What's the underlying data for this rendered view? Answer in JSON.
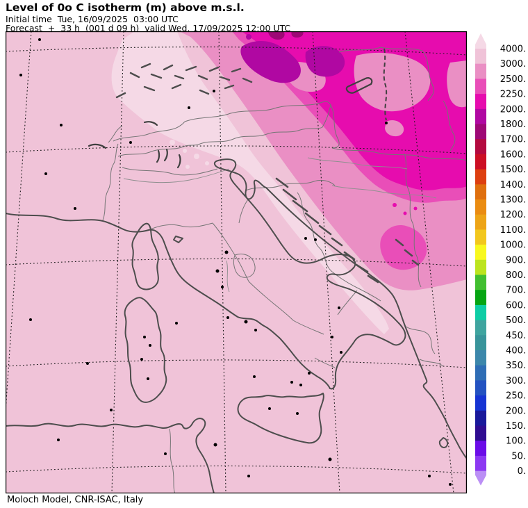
{
  "header": {
    "title": "Level of 0o C isotherm (m) above m.s.l.",
    "initial_time_line": "Initial time  Tue, 16/09/2025  03:00 UTC",
    "forecast_line": "Forecast  +  33 h  (001 d 09 h)  valid Wed, 17/09/2025 12:00 UTC"
  },
  "footer": {
    "credit": "Moloch Model, CNR-ISAC, Italy"
  },
  "chart_data": {
    "type": "heatmap",
    "title": "Level of 0o C isotherm (m) above m.s.l.",
    "variable": "Height of the 0 C isotherm",
    "units": "m",
    "model": "Moloch",
    "institution": "CNR-ISAC, Italy",
    "initial_time": "Tue, 16/09/2025 03:00 UTC",
    "forecast_lead": "+ 33 h (001 d 09 h)",
    "valid_time": "Wed, 17/09/2025 12:00 UTC",
    "region": "Italy, Alps, Adriatic and central Mediterranean",
    "grid": "lat/lon graticule drawn as dotted lines",
    "legend_position": "right",
    "colorbar": {
      "orientation": "vertical",
      "levels": [
        4000,
        3000,
        2500,
        2250,
        2000,
        1800,
        1700,
        1600,
        1500,
        1400,
        1300,
        1200,
        1100,
        1000,
        900,
        800,
        700,
        600,
        500,
        450,
        400,
        350,
        300,
        250,
        200,
        150,
        100,
        50,
        0
      ],
      "labels": [
        "4000.",
        "3000.",
        "2500.",
        "2250.",
        "2000.",
        "1800.",
        "1700.",
        "1600.",
        "1500.",
        "1400.",
        "1300.",
        "1200.",
        "1100.",
        "1000.",
        "900.",
        "800.",
        "700.",
        "600.",
        "500.",
        "450.",
        "400.",
        "350.",
        "300.",
        "250.",
        "200.",
        "150.",
        "100.",
        "50.",
        "0."
      ],
      "colors": [
        "#f5d9e6",
        "#f0c3d8",
        "#ea8fc4",
        "#e94eb8",
        "#e60cae",
        "#b008a2",
        "#9e0876",
        "#b30a3f",
        "#cc0f24",
        "#dd3f10",
        "#df6f0e",
        "#ea8c12",
        "#eda417",
        "#f2c71d",
        "#f8f81e",
        "#bce41e",
        "#41bf30",
        "#06a513",
        "#0ecda5",
        "#3fa49f",
        "#38949a",
        "#3c87ab",
        "#2e6db5",
        "#2352c1",
        "#1634d3",
        "#19199b",
        "#2f0c91",
        "#6b0ce8",
        "#8c38f2",
        "#bb8ff5"
      ]
    },
    "filled_regions": [
      {
        "value_range_m": "> 4000",
        "color": "#f5d9e6",
        "where": "curved light band from the Alps south-east along the Adriatic Sea toward Montenegro"
      },
      {
        "value_range_m": "3000-4000",
        "color": "#f0c3d8",
        "where": "most of Italy, the western Mediterranean and north Africa"
      },
      {
        "value_range_m": "2500-3000",
        "color": "#ea8fc4",
        "where": "north-east: eastern Alps, Pannonian basin, central Balkans; lighter patches over Hungary"
      },
      {
        "value_range_m": "2250-2500",
        "color": "#e94eb8",
        "where": "narrow strip along the magenta area and patch over Montenegro/Albania"
      },
      {
        "value_range_m": "2000-2250",
        "color": "#e60cae",
        "where": "broad magenta area over Czechia, Slovakia, Hungary and northern Balkans"
      },
      {
        "value_range_m": "1800-2000",
        "color": "#b008a2",
        "where": "small purple patches near the northern map edge"
      },
      {
        "value_range_m": "1700-1800",
        "color": "#9e0876",
        "where": "tiny specks at the northern map edge"
      }
    ]
  },
  "colors": {
    "coast": "#4d4d4d",
    "border": "#757575",
    "river": "#8f8f8f",
    "graticule": "#1a1a1a",
    "frame": "#000000",
    "lake": "#3f3f3f"
  }
}
